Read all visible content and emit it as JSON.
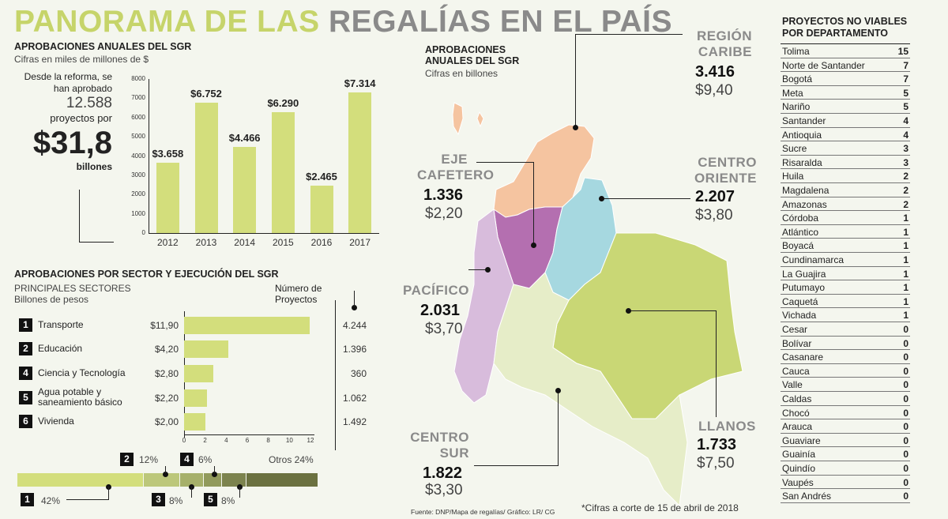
{
  "title": {
    "part1": "PANORAMA DE LAS",
    "part2": "REGALÍAS EN EL PAÍS"
  },
  "annual": {
    "heading": "APROBACIONES ANUALES DEL SGR",
    "subtitle": "Cifras en miles de millones de $",
    "summary": {
      "line1": "Desde la reforma, se",
      "line2": "han aprobado",
      "count": "12.588",
      "line3": "proyectos por",
      "amount": "$31,8",
      "unit": "billones"
    }
  },
  "sector": {
    "heading": "APROBACIONES POR SECTOR Y EJECUCIÓN DEL SGR",
    "sub1": "PRINCIPALES SECTORES",
    "sub2": "Billones de pesos",
    "proj_header": "Número de Proyectos",
    "items": [
      {
        "num": "1",
        "name": "Transporte",
        "value": "$11,90",
        "projects": "4.244"
      },
      {
        "num": "2",
        "name": "Educación",
        "value": "$4,20",
        "projects": "1.396"
      },
      {
        "num": "4",
        "name": "Ciencia y Tecnología",
        "value": "$2,80",
        "projects": "360"
      },
      {
        "num": "5",
        "name": "Agua potable y saneamiento básico",
        "value": "$2,20",
        "projects": "1.062"
      },
      {
        "num": "6",
        "name": "Vivienda",
        "value": "$2,00",
        "projects": "1.492"
      }
    ],
    "shares": {
      "s1": "42%",
      "s2": "12%",
      "s3": "8%",
      "s4": "6%",
      "s5": "8%",
      "otros": "Otros  24%"
    }
  },
  "map": {
    "heading": "APROBACIONES ANUALES DEL SGR",
    "subtitle": "Cifras en billones",
    "regions": [
      {
        "name": "REGIÓN CARIBE",
        "count": "3.416",
        "amount": "$9,40"
      },
      {
        "name": "EJE CAFETERO",
        "count": "1.336",
        "amount": "$2,20"
      },
      {
        "name": "CENTRO ORIENTE",
        "count": "2.207",
        "amount": "$3,80"
      },
      {
        "name": "PACÍFICO",
        "count": "2.031",
        "amount": "$3,70"
      },
      {
        "name": "LLANOS",
        "count": "1.733",
        "amount": "$7,50"
      },
      {
        "name": "CENTRO SUR",
        "count": "1.822",
        "amount": "$3,30"
      }
    ],
    "source": "Fuente: DNP/Mapa de regalías/ Gráfico: LR/ CG",
    "note": "*Cifras a corte de 15 de abril de 2018"
  },
  "table": {
    "heading": "PROYECTOS NO VIABLES POR DEPARTAMENTO",
    "rows": [
      {
        "name": "Tolima",
        "value": "15"
      },
      {
        "name": "Norte de Santander",
        "value": "7"
      },
      {
        "name": "Bogotá",
        "value": "7"
      },
      {
        "name": "Meta",
        "value": "5"
      },
      {
        "name": "Nariño",
        "value": "5"
      },
      {
        "name": "Santander",
        "value": "4"
      },
      {
        "name": "Antioquia",
        "value": "4"
      },
      {
        "name": "Sucre",
        "value": "3"
      },
      {
        "name": "Risaralda",
        "value": "3"
      },
      {
        "name": "Huila",
        "value": "2"
      },
      {
        "name": "Magdalena",
        "value": "2"
      },
      {
        "name": "Amazonas",
        "value": "2"
      },
      {
        "name": "Córdoba",
        "value": "1"
      },
      {
        "name": "Atlántico",
        "value": "1"
      },
      {
        "name": "Boyacá",
        "value": "1"
      },
      {
        "name": "Cundinamarca",
        "value": "1"
      },
      {
        "name": "La Guajira",
        "value": "1"
      },
      {
        "name": "Putumayo",
        "value": "1"
      },
      {
        "name": "Caquetá",
        "value": "1"
      },
      {
        "name": "Vichada",
        "value": "1"
      },
      {
        "name": "Cesar",
        "value": "0"
      },
      {
        "name": "Bolívar",
        "value": "0"
      },
      {
        "name": "Casanare",
        "value": "0"
      },
      {
        "name": "Cauca",
        "value": "0"
      },
      {
        "name": "Valle",
        "value": "0"
      },
      {
        "name": "Caldas",
        "value": "0"
      },
      {
        "name": "Chocó",
        "value": "0"
      },
      {
        "name": "Arauca",
        "value": "0"
      },
      {
        "name": "Guaviare",
        "value": "0"
      },
      {
        "name": "Guainía",
        "value": "0"
      },
      {
        "name": "Quindío",
        "value": "0"
      },
      {
        "name": "Vaupés",
        "value": "0"
      },
      {
        "name": "San Andrés",
        "value": "0"
      }
    ]
  },
  "chart_data": [
    {
      "type": "bar",
      "categories": [
        "2012",
        "2013",
        "2014",
        "2015",
        "2016",
        "2017"
      ],
      "values": [
        3658,
        6752,
        4466,
        6290,
        2465,
        7314
      ],
      "value_labels": [
        "$3.658",
        "$6.752",
        "$4.466",
        "$6.290",
        "$2.465",
        "$7.314"
      ],
      "yticks": [
        0,
        1000,
        2000,
        3000,
        4000,
        5000,
        6000,
        7000,
        8000
      ],
      "ylim": [
        0,
        8000
      ],
      "color": "#d3de7c"
    },
    {
      "type": "bar",
      "orientation": "horizontal",
      "categories": [
        "Transporte",
        "Educación",
        "Ciencia y Tecnología",
        "Agua potable y saneamiento básico",
        "Vivienda"
      ],
      "values": [
        11.9,
        4.2,
        2.8,
        2.2,
        2.0
      ],
      "xticks": [
        0,
        2,
        4,
        6,
        8,
        10,
        12
      ],
      "xlim": [
        0,
        12
      ],
      "color": "#d3de7c"
    },
    {
      "type": "bar",
      "orientation": "stacked-horizontal",
      "segments": [
        {
          "label": "1",
          "value": 42,
          "color": "#d3de7c"
        },
        {
          "label": "2",
          "value": 12,
          "color": "#bcc77a"
        },
        {
          "label": "3",
          "value": 8,
          "color": "#a6b06a"
        },
        {
          "label": "4",
          "value": 6,
          "color": "#919a5c"
        },
        {
          "label": "5",
          "value": 8,
          "color": "#7c834e"
        },
        {
          "label": "Otros",
          "value": 24,
          "color": "#6b7140"
        }
      ]
    }
  ]
}
